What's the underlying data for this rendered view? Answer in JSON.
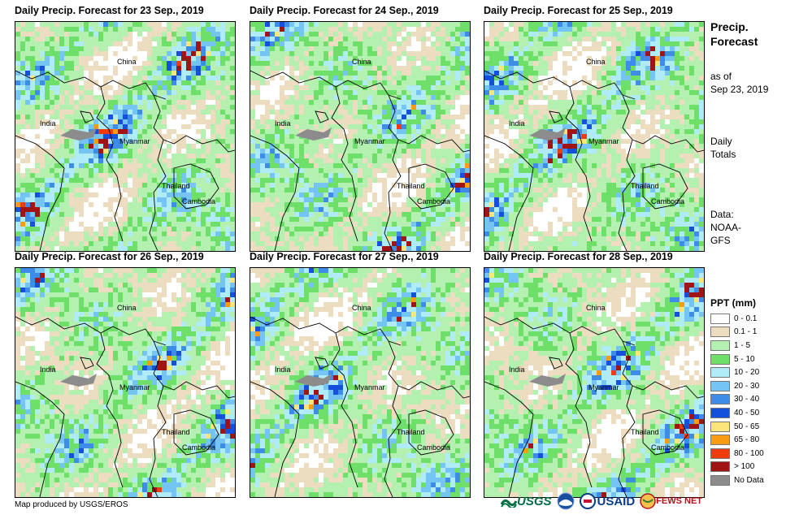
{
  "panels": [
    {
      "title": "Daily Precip. Forecast for 23 Sep., 2019"
    },
    {
      "title": "Daily Precip. Forecast for 24 Sep., 2019"
    },
    {
      "title": "Daily Precip. Forecast for 25 Sep., 2019"
    },
    {
      "title": "Daily Precip. Forecast for 26 Sep., 2019"
    },
    {
      "title": "Daily Precip. Forecast for 27 Sep., 2019"
    },
    {
      "title": "Daily Precip. Forecast for 28 Sep., 2019"
    }
  ],
  "map_labels": {
    "china": "China",
    "india": "India",
    "myanmar": "Myanmar",
    "thailand": "Thailand",
    "cambodia": "Cambodia"
  },
  "side": {
    "title_line1": "Precip.",
    "title_line2": "Forecast",
    "asof_line1": "as of",
    "asof_line2": "Sep 23, 2019",
    "daily_line1": "Daily",
    "daily_line2": "Totals",
    "data_line1": "Data:",
    "data_line2": "NOAA-",
    "data_line3": "GFS"
  },
  "legend": {
    "title": "PPT (mm)",
    "items": [
      {
        "label": "0 - 0.1",
        "color": "#ffffff"
      },
      {
        "label": "0.1 - 1",
        "color": "#ecdcc0"
      },
      {
        "label": "1 - 5",
        "color": "#b4f0b0"
      },
      {
        "label": "5 - 10",
        "color": "#6ee06a"
      },
      {
        "label": "10 - 20",
        "color": "#b0ecf8"
      },
      {
        "label": "20 - 30",
        "color": "#74c4f4"
      },
      {
        "label": "30 - 40",
        "color": "#3c8ce8"
      },
      {
        "label": "40 - 50",
        "color": "#1450dc"
      },
      {
        "label": "50 - 65",
        "color": "#fce67c"
      },
      {
        "label": "65 - 80",
        "color": "#f89c14"
      },
      {
        "label": "80 - 100",
        "color": "#f03c0c"
      },
      {
        "label": "> 100",
        "color": "#a01414"
      },
      {
        "label": "No Data",
        "color": "#8c8c8c"
      }
    ]
  },
  "credit": "Map produced by USGS/EROS",
  "logos": {
    "usgs": "USGS",
    "usaid": "USAID",
    "fewsnet": "FEWS NET"
  }
}
